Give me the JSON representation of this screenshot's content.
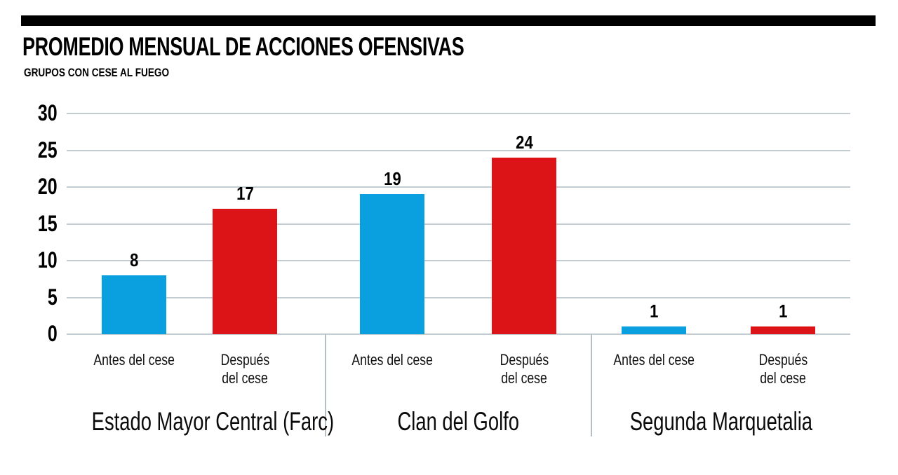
{
  "header": {
    "title": "PROMEDIO MENSUAL DE ACCIONES OFENSIVAS",
    "subtitle": "GRUPOS CON CESE AL FUEGO"
  },
  "colors": {
    "accent_bar": "#000000",
    "blue": "#0aa0df",
    "red": "#dc1317",
    "gridline": "#c3ccd1",
    "divider": "#b4c0c6",
    "text": "#000000"
  },
  "chart_data": {
    "type": "bar",
    "title": "PROMEDIO MENSUAL DE ACCIONES OFENSIVAS",
    "subtitle": "GRUPOS CON CESE AL FUEGO",
    "categories": [
      "Estado Mayor Central (Farc)",
      "Clan del Golfo",
      "Segunda Marquetalia"
    ],
    "series": [
      {
        "name": "Antes del cese",
        "color": "#0aa0df",
        "values": [
          8,
          19,
          1
        ]
      },
      {
        "name": "Después del cese",
        "color": "#dc1317",
        "values": [
          17,
          24,
          1
        ]
      }
    ],
    "bar_tick_labels": [
      [
        "Antes del cese"
      ],
      [
        "Después",
        "del cese"
      ]
    ],
    "yticks": [
      0,
      5,
      10,
      15,
      20,
      25,
      30
    ],
    "ylim": [
      0,
      30
    ],
    "xlabel": "",
    "ylabel": "",
    "grid": true,
    "legend": false
  }
}
